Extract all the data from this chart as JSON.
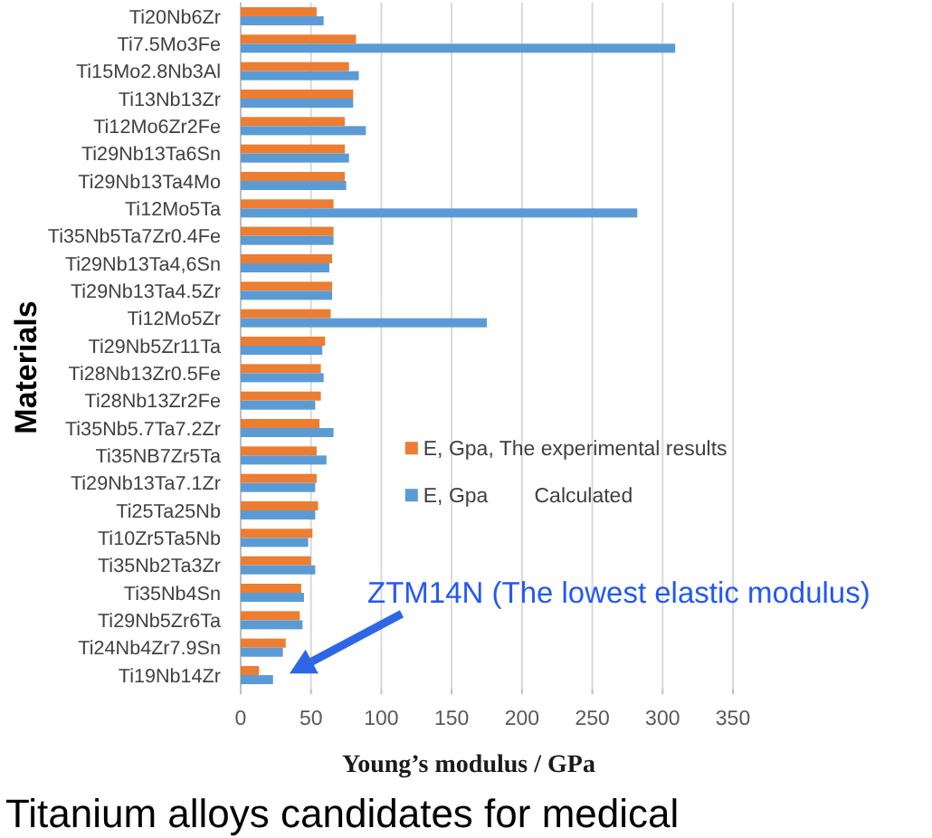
{
  "chart_data": {
    "type": "bar",
    "orientation": "horizontal",
    "title": "Titanium alloys candidates for medical",
    "xlabel": "Young’s modulus / GPa",
    "ylabel": "Materials",
    "categories": [
      "Ti20Nb6Zr",
      "Ti7.5Mo3Fe",
      "Ti15Mo2.8Nb3Al",
      "Ti13Nb13Zr",
      "Ti12Mo6Zr2Fe",
      "Ti29Nb13Ta6Sn",
      "Ti29Nb13Ta4Mo",
      "Ti12Mo5Ta",
      "Ti35Nb5Ta7Zr0.4Fe",
      "Ti29Nb13Ta4,6Sn",
      "Ti29Nb13Ta4.5Zr",
      "Ti12Mo5Zr",
      "Ti29Nb5Zr11Ta",
      "Ti28Nb13Zr0.5Fe",
      "Ti28Nb13Zr2Fe",
      "Ti35Nb5.7Ta7.2Zr",
      "Ti35NB7Zr5Ta",
      "Ti29Nb13Ta7.1Zr",
      "Ti25Ta25Nb",
      "Ti10Zr5Ta5Nb",
      "Ti35Nb2Ta3Zr",
      "Ti35Nb4Sn",
      "Ti29Nb5Zr6Ta",
      "Ti24Nb4Zr7.9Sn",
      "Ti19Nb14Zr"
    ],
    "series": [
      {
        "name": "E, Gpa, The experimental results",
        "color": "#ed7d31",
        "values": [
          54,
          82,
          77,
          80,
          74,
          74,
          74,
          66,
          66,
          65,
          65,
          64,
          60,
          57,
          57,
          56,
          54,
          54,
          55,
          51,
          50,
          43,
          42,
          32,
          13
        ]
      },
      {
        "name": "E, Gpa        Calculated",
        "color": "#5b9bd5",
        "values": [
          59,
          309,
          84,
          80,
          89,
          77,
          75,
          282,
          66,
          63,
          65,
          175,
          58,
          59,
          53,
          66,
          61,
          53,
          53,
          48,
          53,
          45,
          44,
          30,
          23
        ]
      }
    ],
    "xlim": [
      0,
      350
    ],
    "xticks": [
      0,
      50,
      100,
      150,
      200,
      250,
      300,
      350
    ],
    "grid": "x",
    "legend": "bottom right",
    "annotations": [
      "ZTM14N (The lowest elastic modulus)"
    ]
  }
}
